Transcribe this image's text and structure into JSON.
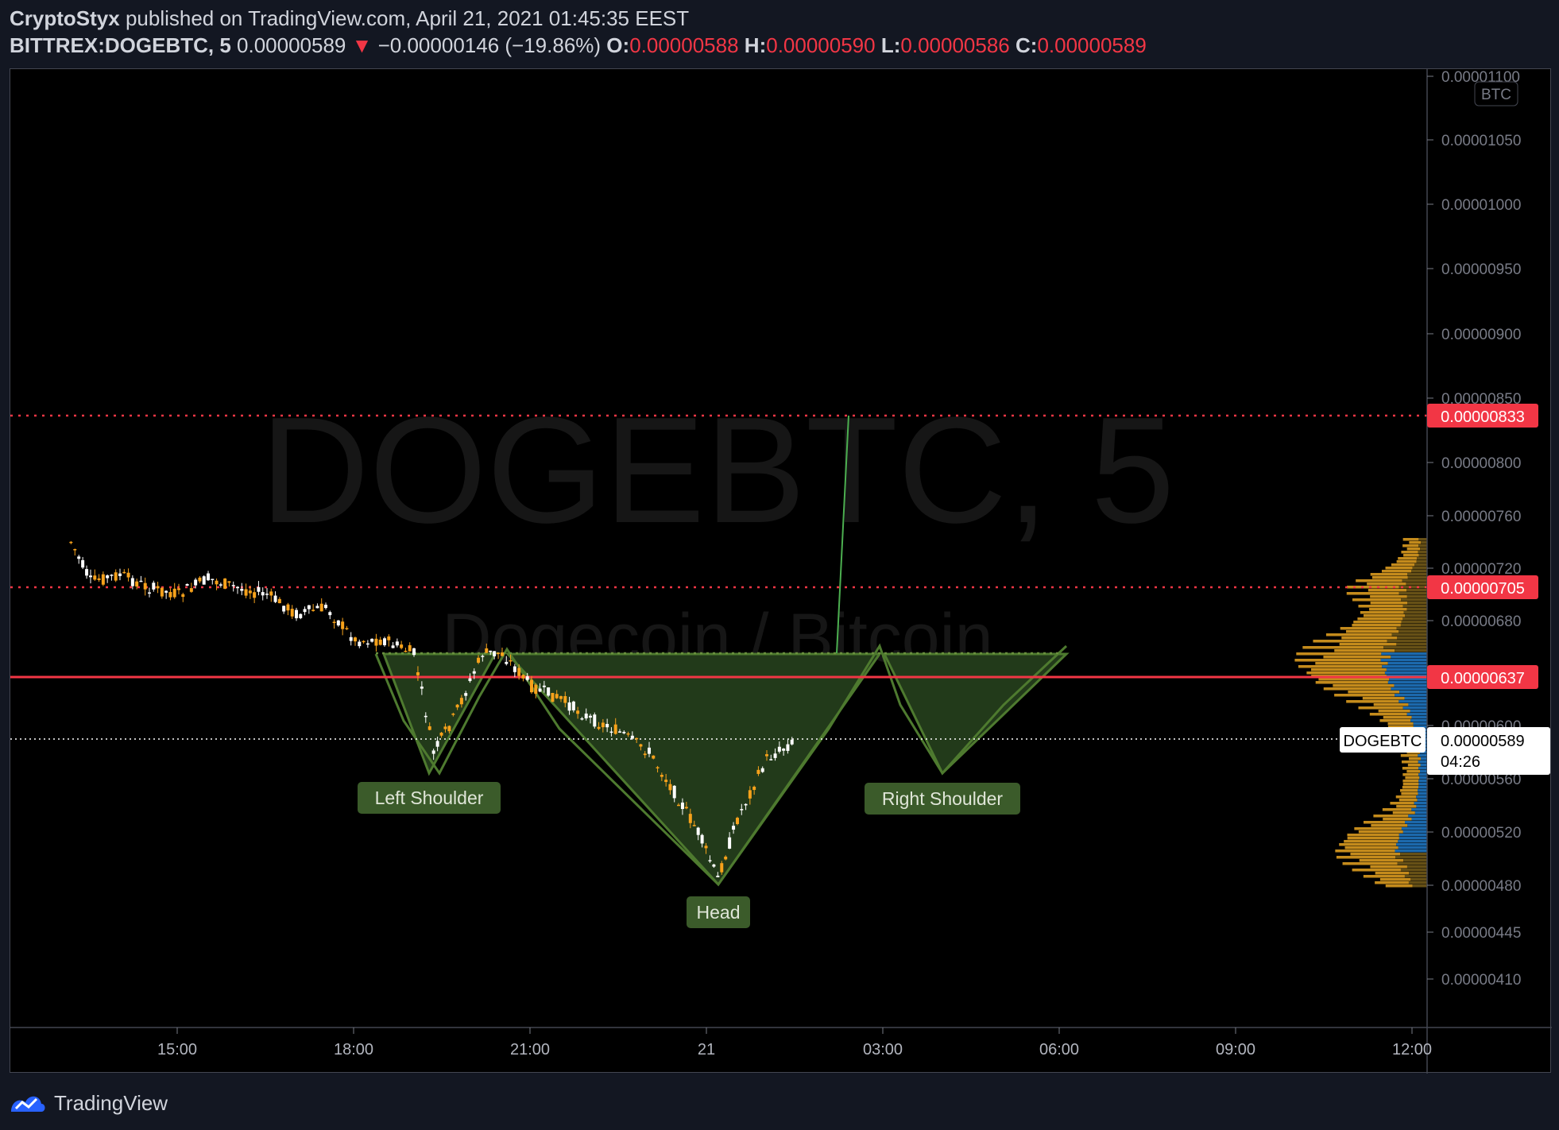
{
  "header": {
    "author": "CryptoStyx",
    "published_text": "published on TradingView.com, April 21, 2021 01:45:35 EEST",
    "symbol": "BITTREX:DOGEBTC, 5",
    "last": "0.00000589",
    "change_arrow": "▼",
    "change": "−0.00000146 (−19.86%)",
    "o_label": "O:",
    "o": "0.00000588",
    "h_label": "H:",
    "h": "0.00000590",
    "l_label": "L:",
    "l": "0.00000586",
    "c_label": "C:",
    "c": "0.00000589"
  },
  "watermark": {
    "title": "DOGEBTC, 5",
    "subtitle": "Dogecoin / Bitcoin"
  },
  "currency_badge": "BTC",
  "footer": {
    "brand": "TradingView"
  },
  "colors": {
    "up": "#ffffff",
    "down": "#f7a21b",
    "pattern_fill": "#223a1a",
    "pattern_line": "#4e7a2f",
    "label_bg": "#3b5b2a",
    "level_red": "#f23645",
    "profile_orange": "#d99a1f",
    "profile_blue": "#1e6fb5"
  },
  "chart_data": {
    "type": "candlestick",
    "y_axis": {
      "min": 3.7e-06,
      "max": 1.12e-05,
      "ticks": [
        "0.00001100",
        "0.00001050",
        "0.00001000",
        "0.00000950",
        "0.00000900",
        "0.00000850",
        "0.00000800",
        "0.00000760",
        "0.00000720",
        "0.00000680",
        "0.00000600",
        "0.00000560",
        "0.00000520",
        "0.00000480",
        "0.00000445",
        "0.00000410"
      ]
    },
    "x_axis": {
      "ticks": [
        "15:00",
        "18:00",
        "21:00",
        "21",
        "03:00",
        "06:00",
        "09:00",
        "12:00"
      ]
    },
    "close_path": [
      [
        "13:10",
        7.4e-06
      ],
      [
        "13:30",
        7.1e-06
      ],
      [
        "14:00",
        7.15e-06
      ],
      [
        "14:30",
        7.05e-06
      ],
      [
        "15:00",
        7e-06
      ],
      [
        "15:30",
        7.12e-06
      ],
      [
        "16:00",
        7.05e-06
      ],
      [
        "16:30",
        7e-06
      ],
      [
        "17:00",
        6.85e-06
      ],
      [
        "17:30",
        6.9e-06
      ],
      [
        "18:00",
        6.65e-06
      ],
      [
        "18:30",
        6.65e-06
      ],
      [
        "19:00",
        6.55e-06
      ],
      [
        "19:20",
        5.8e-06
      ],
      [
        "19:40",
        6.05e-06
      ],
      [
        "20:10",
        6.55e-06
      ],
      [
        "20:30",
        6.55e-06
      ],
      [
        "21:00",
        6.3e-06
      ],
      [
        "21:30",
        6.2e-06
      ],
      [
        "22:00",
        6.05e-06
      ],
      [
        "22:30",
        5.95e-06
      ],
      [
        "23:00",
        5.8e-06
      ],
      [
        "23:30",
        5.45e-06
      ],
      [
        "23:50",
        5.2e-06
      ],
      [
        "00:10",
        4.85e-06
      ],
      [
        "00:30",
        5.3e-06
      ],
      [
        "01:00",
        5.75e-06
      ],
      [
        "01:30",
        5.89e-06
      ]
    ],
    "horizontal_levels": [
      {
        "price": "0.00000833",
        "style": "dotted"
      },
      {
        "price": "0.00000705",
        "style": "dotted"
      },
      {
        "price": "0.00000637",
        "style": "solid"
      },
      {
        "price": "0.00000589",
        "style": "dotted-white"
      }
    ],
    "last_price_label": {
      "symbol": "DOGEBTC",
      "price": "0.00000589",
      "countdown": "04:26"
    },
    "pattern": {
      "name": "inverse head and shoulders",
      "neckline": 6.5e-06,
      "labels": [
        "Left Shoulder",
        "Head",
        "Right Shoulder"
      ]
    },
    "target_line": {
      "from": 6.5e-06,
      "to": 8.33e-06
    }
  }
}
